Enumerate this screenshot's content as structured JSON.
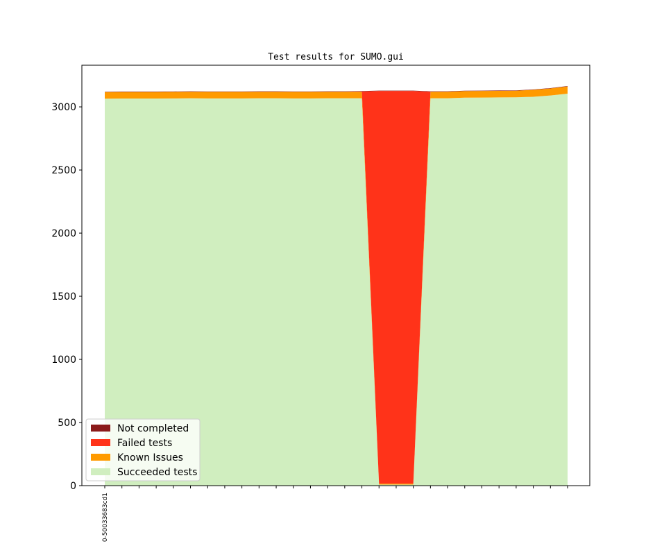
{
  "chart_data": {
    "type": "area",
    "title": "Test results for SUMO.gui",
    "xlabel": "",
    "ylabel": "",
    "ylim": [
      0,
      3330
    ],
    "yticks": [
      0,
      500,
      1000,
      1500,
      2000,
      2500,
      3000
    ],
    "x_tick_labels": [
      "0-50033683cd1"
    ],
    "n_points": 28,
    "legend_position": "lower-left",
    "grid": false,
    "series": [
      {
        "name": "Succeeded tests",
        "color": "#d0eebf",
        "values": [
          3065,
          3066,
          3066,
          3066,
          3067,
          3068,
          3067,
          3067,
          3067,
          3068,
          3068,
          3067,
          3067,
          3068,
          3068,
          3068,
          8,
          8,
          8,
          3068,
          3068,
          3073,
          3074,
          3075,
          3076,
          3080,
          3090,
          3105
        ]
      },
      {
        "name": "Known Issues",
        "color": "#ff9a00",
        "values": [
          52,
          52,
          52,
          52,
          52,
          52,
          52,
          52,
          52,
          52,
          52,
          52,
          52,
          52,
          52,
          52,
          8,
          8,
          8,
          52,
          52,
          52,
          52,
          52,
          52,
          55,
          56,
          57
        ]
      },
      {
        "name": "Failed tests",
        "color": "#ff3319",
        "values": [
          0,
          0,
          0,
          0,
          0,
          0,
          0,
          0,
          0,
          0,
          0,
          0,
          0,
          0,
          0,
          2,
          3110,
          3110,
          3110,
          0,
          0,
          0,
          0,
          0,
          0,
          0,
          0,
          0
        ]
      },
      {
        "name": "Not completed",
        "color": "#8b1a1a",
        "values": [
          3,
          3,
          3,
          3,
          3,
          3,
          3,
          3,
          3,
          3,
          3,
          3,
          3,
          3,
          3,
          3,
          3,
          3,
          3,
          3,
          3,
          3,
          3,
          3,
          3,
          3,
          3,
          3
        ]
      }
    ],
    "legend_order": [
      "Not completed",
      "Failed tests",
      "Known Issues",
      "Succeeded tests"
    ]
  }
}
